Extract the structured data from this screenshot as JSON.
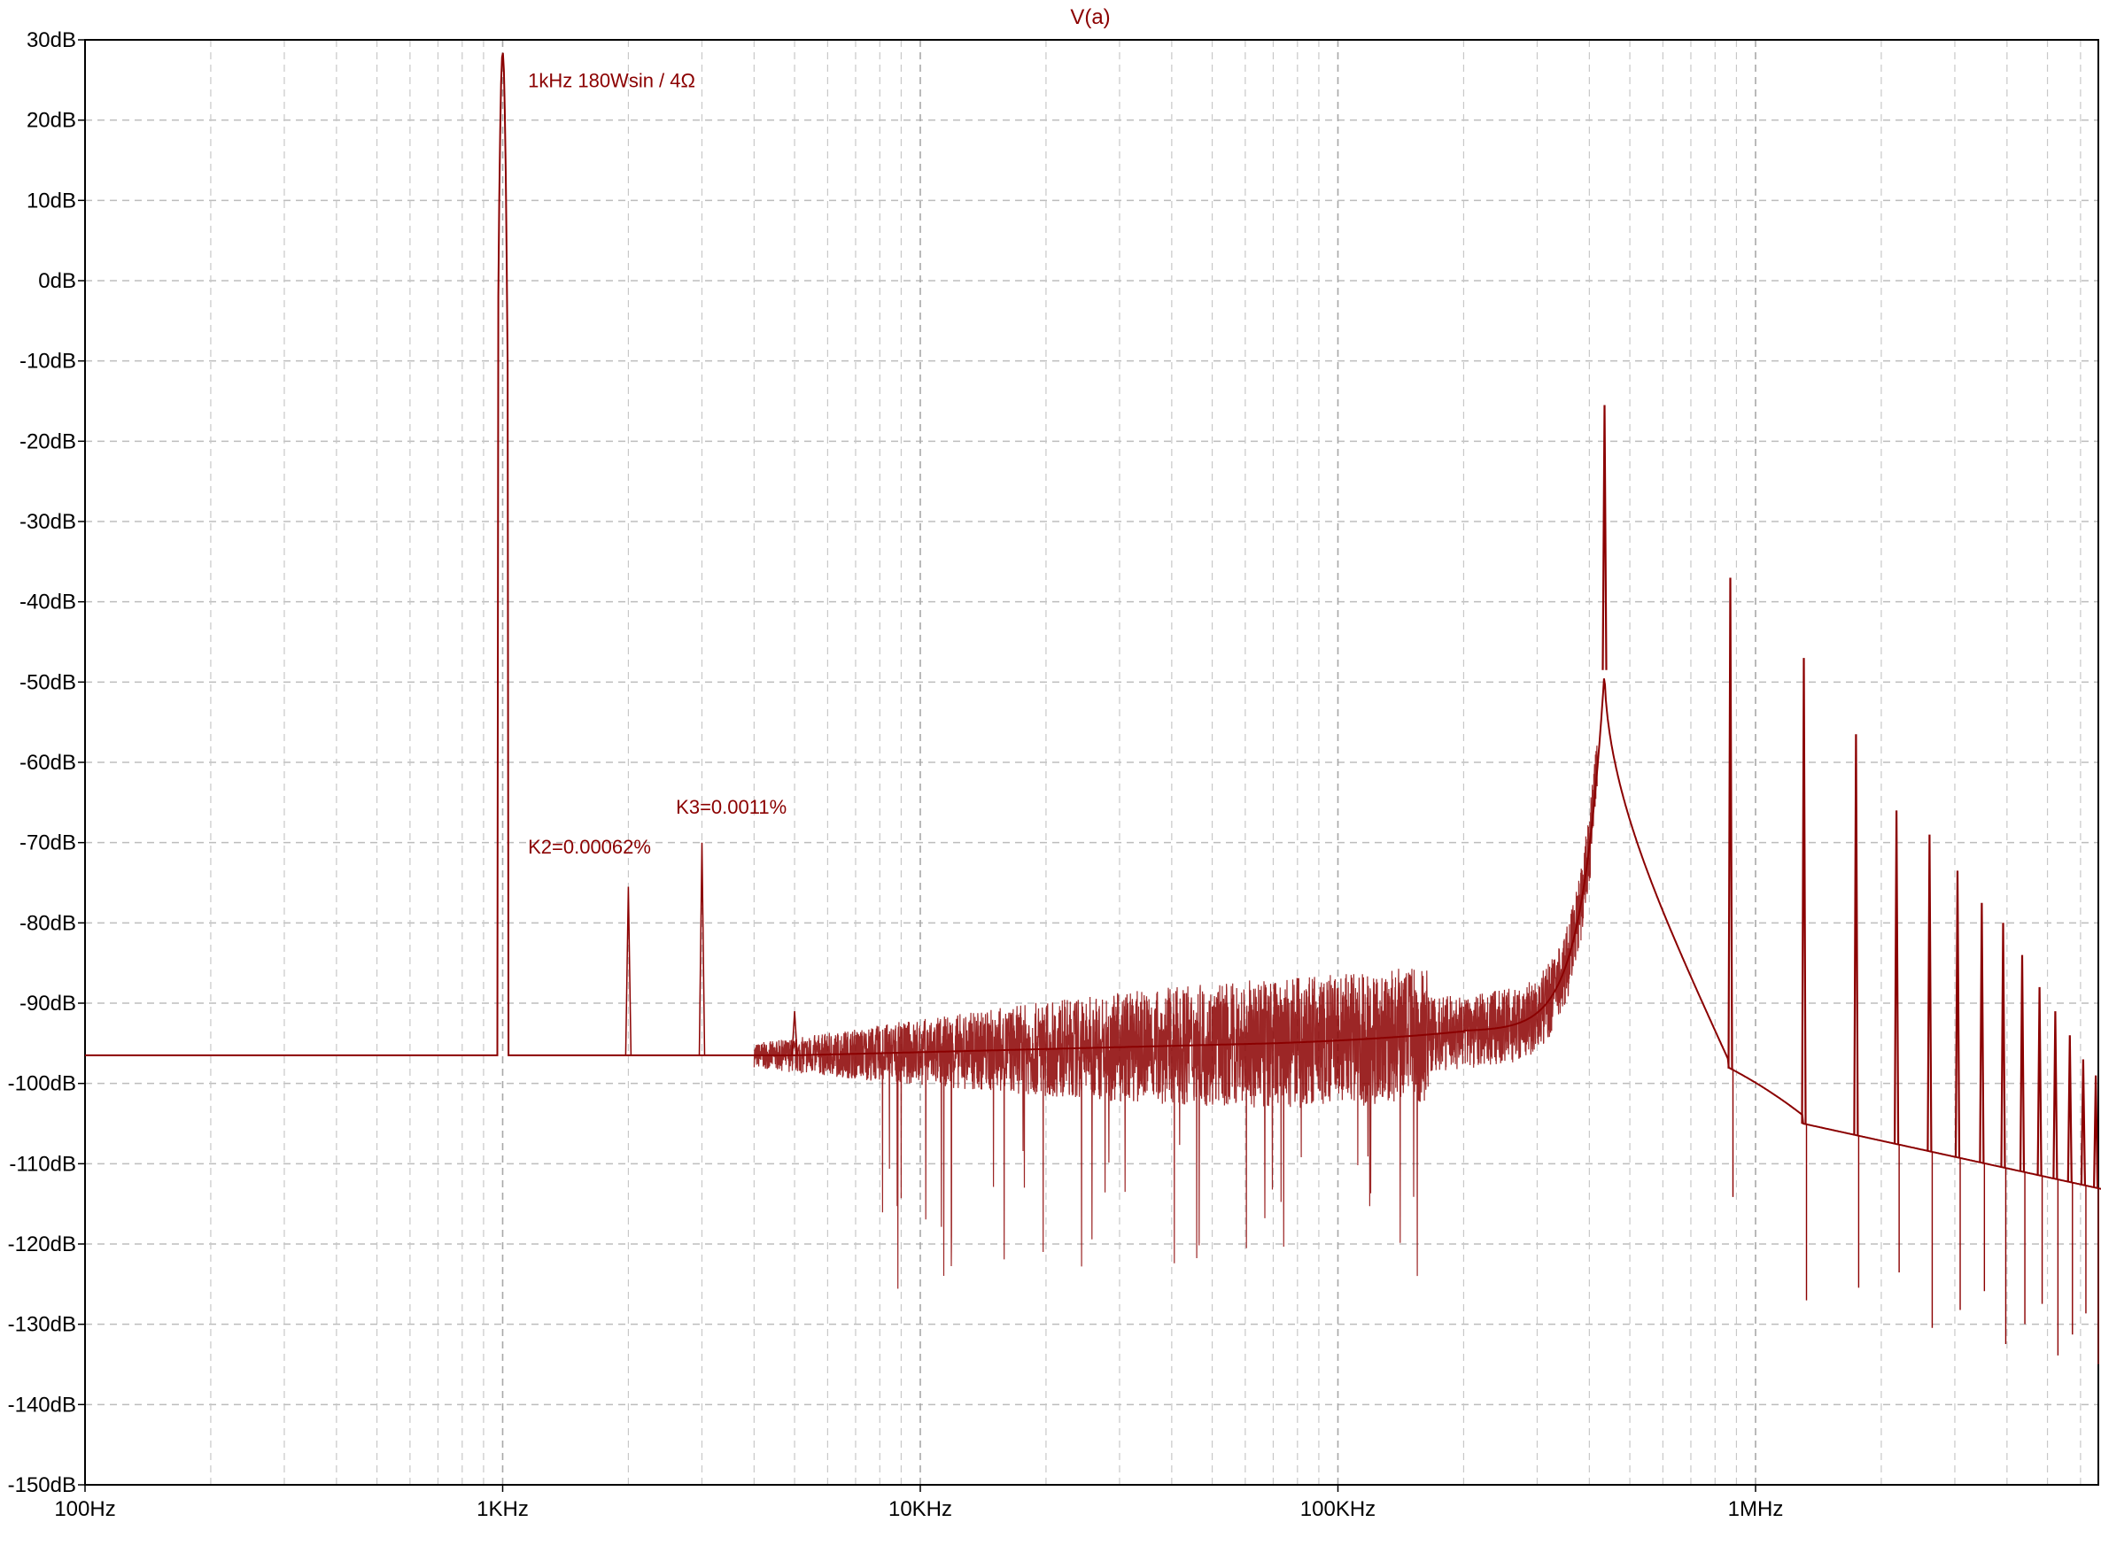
{
  "chart_data": {
    "type": "line",
    "title": "V(a)",
    "xlabel": "",
    "ylabel": "",
    "x_scale": "log",
    "x_range_hz": [
      100,
      8000000
    ],
    "ylim": [
      -150,
      30
    ],
    "grid": true,
    "trace_color": "#8b0000",
    "y_ticks": [
      {
        "value": 30,
        "label": "30dB"
      },
      {
        "value": 20,
        "label": "20dB"
      },
      {
        "value": 10,
        "label": "10dB"
      },
      {
        "value": 0,
        "label": "0dB"
      },
      {
        "value": -10,
        "label": "-10dB"
      },
      {
        "value": -20,
        "label": "-20dB"
      },
      {
        "value": -30,
        "label": "-30dB"
      },
      {
        "value": -40,
        "label": "-40dB"
      },
      {
        "value": -50,
        "label": "-50dB"
      },
      {
        "value": -60,
        "label": "-60dB"
      },
      {
        "value": -70,
        "label": "-70dB"
      },
      {
        "value": -80,
        "label": "-80dB"
      },
      {
        "value": -90,
        "label": "-90dB"
      },
      {
        "value": -100,
        "label": "-100dB"
      },
      {
        "value": -110,
        "label": "-110dB"
      },
      {
        "value": -120,
        "label": "-120dB"
      },
      {
        "value": -130,
        "label": "-130dB"
      },
      {
        "value": -140,
        "label": "-140dB"
      },
      {
        "value": -150,
        "label": "-150dB"
      }
    ],
    "x_ticks": [
      {
        "value": 100,
        "label": "100Hz"
      },
      {
        "value": 1000,
        "label": "1KHz"
      },
      {
        "value": 10000,
        "label": "10KHz"
      },
      {
        "value": 100000,
        "label": "100KHz"
      },
      {
        "value": 1000000,
        "label": "1MHz"
      }
    ],
    "annotations": [
      {
        "text": "1kHz  180Wsin / 4Ω",
        "x": 1150,
        "y": 25
      },
      {
        "text": "K2=0.00062%",
        "x": 1150,
        "y": -70.5
      },
      {
        "text": "K3=0.0011%",
        "x": 2600,
        "y": -65.5
      }
    ],
    "floor_level": -96.5,
    "peaks": [
      {
        "label": "fundamental",
        "x": 1000,
        "y": 28.5
      },
      {
        "label": "H2",
        "x": 2000,
        "y": -75.5
      },
      {
        "label": "H3",
        "x": 3000,
        "y": -70
      },
      {
        "label": "H5",
        "x": 5000,
        "y": -91
      },
      {
        "label": "switching",
        "x": 435000,
        "y": -15.5
      },
      {
        "label": "sw2",
        "x": 870000,
        "y": -37
      },
      {
        "label": "sw3",
        "x": 1305000,
        "y": -47
      },
      {
        "label": "sw4",
        "x": 1740000,
        "y": -56.5
      },
      {
        "label": "sw5",
        "x": 2175000,
        "y": -66
      },
      {
        "label": "sw6",
        "x": 2610000,
        "y": -69
      },
      {
        "label": "sw7",
        "x": 3045000,
        "y": -73.5
      },
      {
        "label": "sw8",
        "x": 3480000,
        "y": -77.5
      },
      {
        "label": "sw9",
        "x": 3915000,
        "y": -80
      },
      {
        "label": "sw10",
        "x": 4350000,
        "y": -84
      },
      {
        "label": "sw11",
        "x": 4785000,
        "y": -88
      },
      {
        "label": "sw12",
        "x": 5220000,
        "y": -91
      },
      {
        "label": "sw13",
        "x": 5655000,
        "y": -94
      },
      {
        "label": "sw14",
        "x": 6090000,
        "y": -97
      },
      {
        "label": "sw15",
        "x": 6525000,
        "y": -99
      },
      {
        "label": "sw16",
        "x": 6960000,
        "y": -102
      },
      {
        "label": "sw17",
        "x": 7395000,
        "y": -103
      }
    ]
  }
}
